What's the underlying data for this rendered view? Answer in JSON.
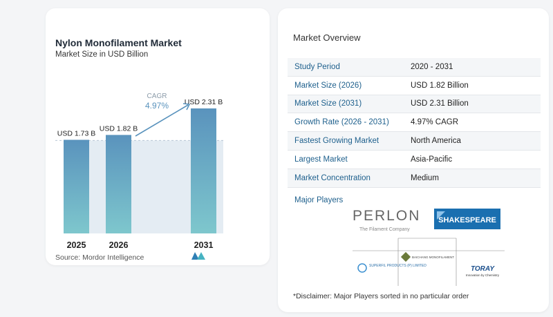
{
  "chart_data": {
    "type": "bar",
    "title": "Nylon Monofilament Market",
    "subtitle": "Market Size in USD Billion",
    "categories": [
      "2025",
      "2026",
      "2031"
    ],
    "values": [
      1.73,
      1.82,
      2.31
    ],
    "data_labels": [
      "USD 1.73 B",
      "USD 1.82 B",
      "USD 2.31 B"
    ],
    "cagr_label": "CAGR",
    "cagr_value": "4.97%",
    "ylim": [
      0,
      2.5
    ],
    "bar_color_top": "#5a93bd",
    "bar_color_bottom": "#7ec7cd",
    "grid": false
  },
  "source": "Source:  Mordor Intelligence",
  "overview": {
    "title": "Market Overview",
    "rows": [
      {
        "label": "Study Period",
        "value": "2020 - 2031"
      },
      {
        "label": "Market Size (2026)",
        "value": "USD 1.82 Billion"
      },
      {
        "label": "Market Size (2031)",
        "value": "USD 2.31 Billion"
      },
      {
        "label": "Growth Rate (2026 - 2031)",
        "value": "4.97% CAGR"
      },
      {
        "label": "Fastest Growing Market",
        "value": "North America"
      },
      {
        "label": "Largest Market",
        "value": "Asia-Pacific"
      },
      {
        "label": "Market Concentration",
        "value": "Medium"
      }
    ]
  },
  "major_players": {
    "label": "Major Players",
    "logos": [
      {
        "name": "PERLON",
        "tagline": "The Filament Company"
      },
      {
        "name": "SHAKESPEARE"
      },
      {
        "name": "SUPERFIL PRODUCTS (P) LIMITED"
      },
      {
        "name": "BAICHANG MONOFILAMENT"
      },
      {
        "name": "TORAY",
        "tagline": "Innovation by Chemistry"
      }
    ]
  },
  "disclaimer": "*Disclaimer: Major Players sorted in no particular order"
}
